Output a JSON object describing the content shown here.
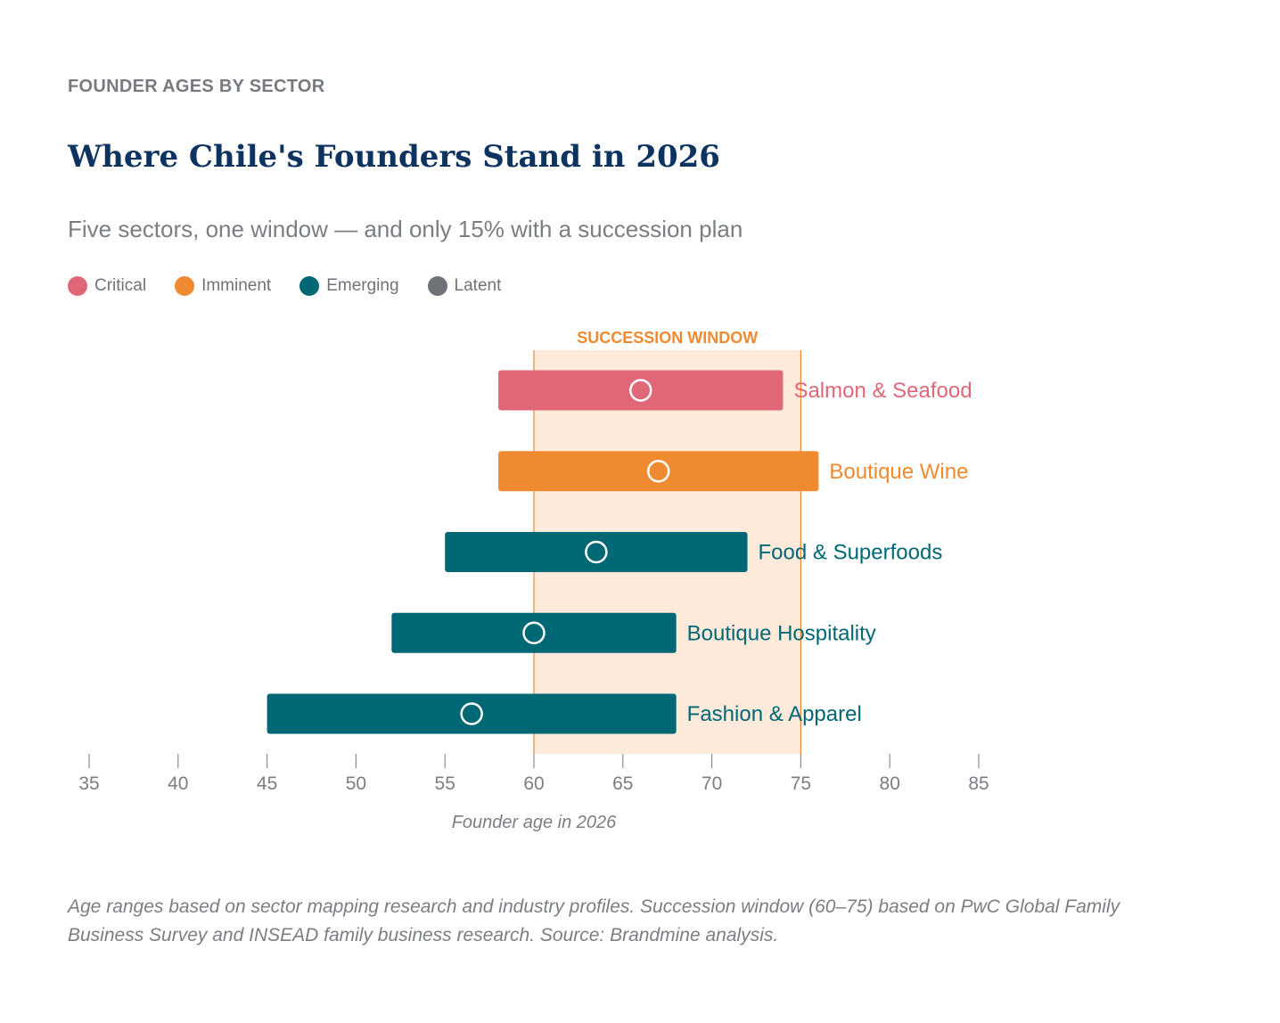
{
  "header": {
    "eyebrow": "FOUNDER AGES BY SECTOR",
    "title": "Where Chile's Founders Stand in 2026",
    "subtitle": "Five sectors, one window — and only 15% with a succession plan"
  },
  "legend": [
    {
      "label": "Critical",
      "color": "#e06777"
    },
    {
      "label": "Imminent",
      "color": "#ef8a30"
    },
    {
      "label": "Emerging",
      "color": "#006775"
    },
    {
      "label": "Latent",
      "color": "#6f7378"
    }
  ],
  "chart_data": {
    "type": "bar",
    "orientation": "horizontal-range",
    "xlabel": "Founder age in 2026",
    "xlim": [
      35,
      85
    ],
    "xticks": [
      35,
      40,
      45,
      50,
      55,
      60,
      65,
      70,
      75,
      80,
      85
    ],
    "window": {
      "label": "SUCCESSION WINDOW",
      "start": 60,
      "end": 75,
      "color": "#ef8a30",
      "fill": "#fdeadb"
    },
    "series": [
      {
        "name": "Salmon & Seafood",
        "start": 58,
        "end": 74,
        "marker": 66,
        "status": "Critical",
        "color": "#e06777"
      },
      {
        "name": "Boutique Wine",
        "start": 58,
        "end": 76,
        "marker": 67,
        "status": "Imminent",
        "color": "#ef8a30"
      },
      {
        "name": "Food & Superfoods",
        "start": 55,
        "end": 72,
        "marker": 63.5,
        "status": "Emerging",
        "color": "#006775"
      },
      {
        "name": "Boutique Hospitality",
        "start": 52,
        "end": 68,
        "marker": 60,
        "status": "Emerging",
        "color": "#006775"
      },
      {
        "name": "Fashion & Apparel",
        "start": 45,
        "end": 68,
        "marker": 56.5,
        "status": "Emerging",
        "color": "#006775"
      }
    ]
  },
  "footnote": "Age ranges based on sector mapping research and industry profiles. Succession window (60–75) based on PwC Global Family Business Survey and INSEAD family business research. Source: Brandmine analysis."
}
